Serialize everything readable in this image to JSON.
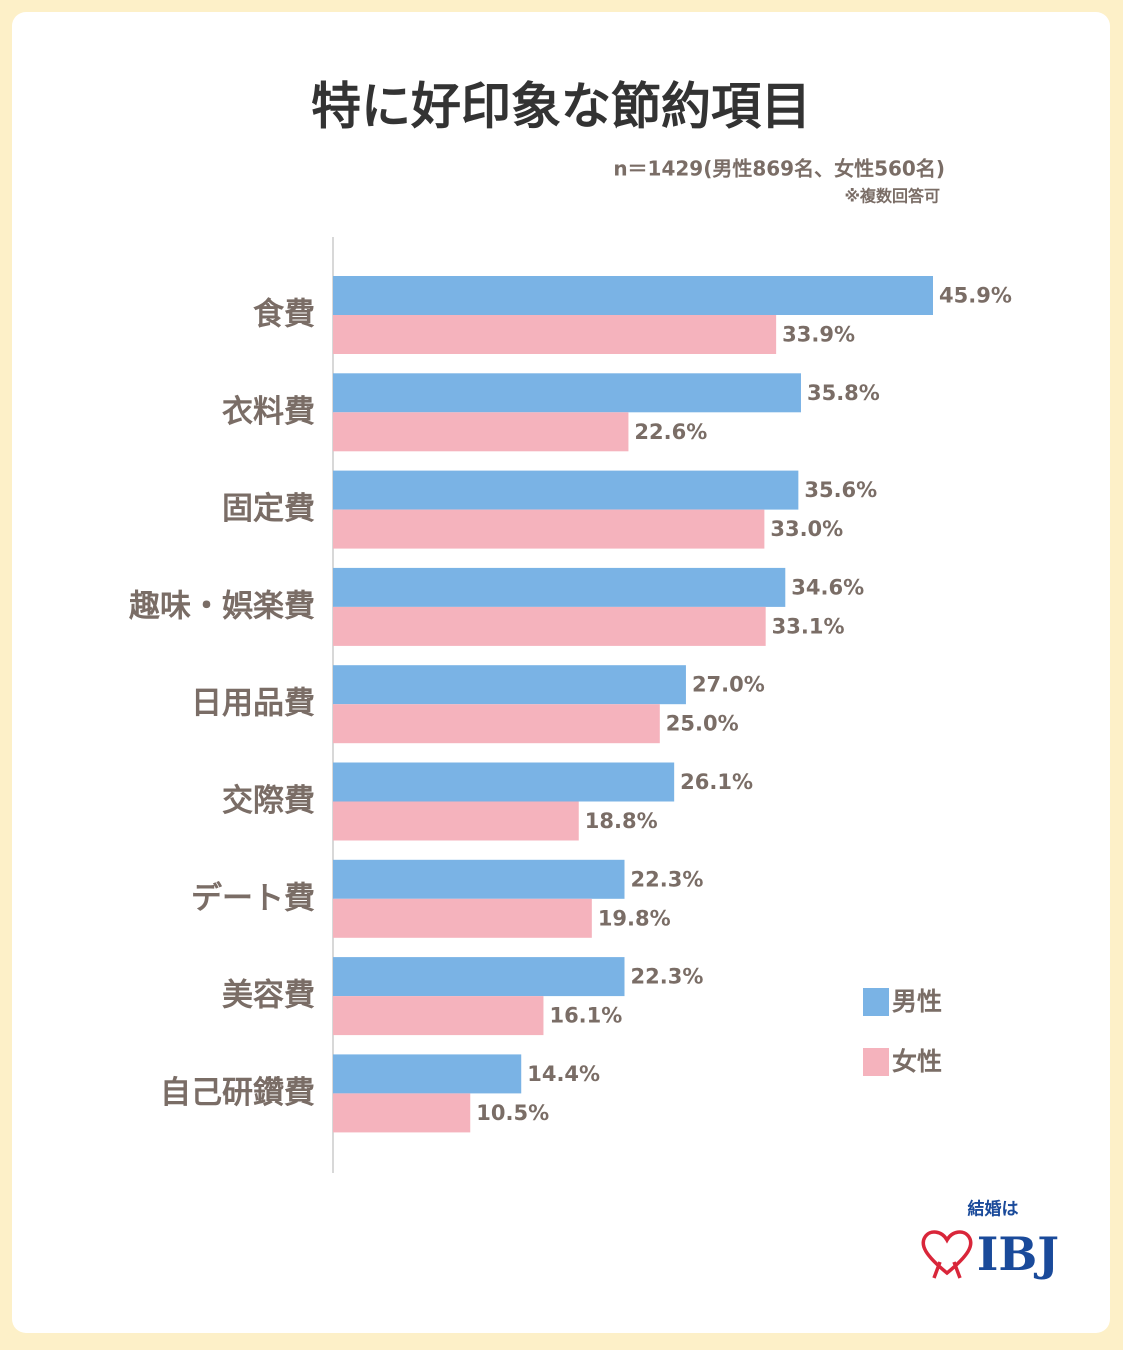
{
  "chart_data": {
    "type": "bar",
    "orientation": "horizontal",
    "title": "特に好印象な節約項目",
    "subtitle": "n＝1429(男性869名、女性560名)",
    "note": "※複数回答可",
    "categories": [
      "食費",
      "衣料費",
      "固定費",
      "趣味・娯楽費",
      "日用品費",
      "交際費",
      "デート費",
      "美容費",
      "自己研鑽費"
    ],
    "series": [
      {
        "name": "男性",
        "color": "#7ab3e5",
        "values": [
          45.9,
          35.8,
          35.6,
          34.6,
          27.0,
          26.1,
          22.3,
          22.3,
          14.4
        ],
        "value_labels": [
          "45.9%",
          "35.8%",
          "35.6%",
          "34.6%",
          "27.0%",
          "26.1%",
          "22.3%",
          "22.3%",
          "14.4%"
        ]
      },
      {
        "name": "女性",
        "color": "#f5b3bd",
        "values": [
          33.9,
          22.6,
          33.0,
          33.1,
          25.0,
          18.8,
          19.8,
          16.1,
          10.5
        ],
        "value_labels": [
          "33.9%",
          "22.6%",
          "33.0%",
          "33.1%",
          "25.0%",
          "18.8%",
          "19.8%",
          "16.1%",
          "10.5%"
        ]
      }
    ],
    "legend_position": "lower right"
  },
  "logo": {
    "tagline": "結婚は",
    "brand": "IBJ"
  }
}
